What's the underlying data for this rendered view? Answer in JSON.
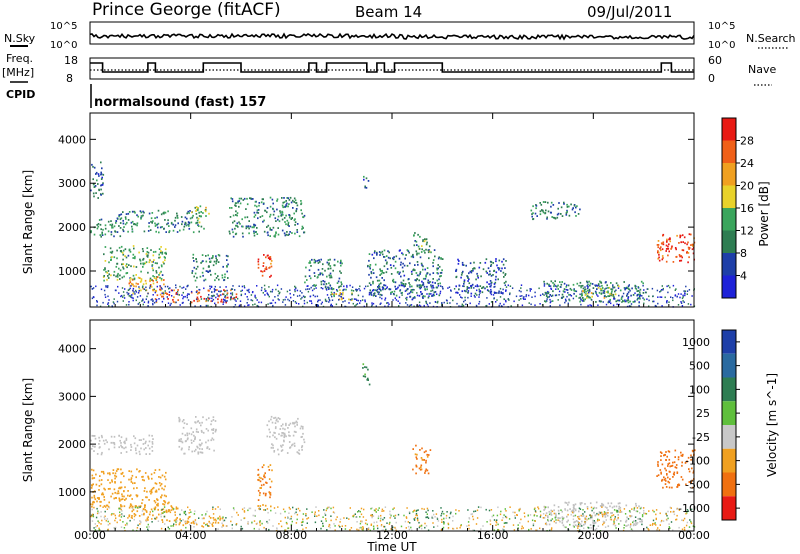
{
  "header": {
    "site": "Prince George (fitACF)",
    "beam": "Beam 14",
    "date": "09/Jul/2011"
  },
  "noise_panel": {
    "left_label": "N.Sky",
    "left_ticks": [
      "10^5",
      "10^0"
    ],
    "right_ticks": [
      "10^5",
      "10^0"
    ],
    "right_label": "N.Search"
  },
  "freq_panel": {
    "left_label_1": "Freq.",
    "left_label_2": "[MHz]",
    "left_ticks": [
      "18",
      "8"
    ],
    "right_ticks": [
      "60",
      "0"
    ],
    "right_label": "Nave"
  },
  "cpid_panel": {
    "label": "CPID",
    "mode": "normalsound (fast) 157"
  },
  "colors": {
    "power_scale": [
      "#1e22d8",
      "#1e3fa8",
      "#2e7d52",
      "#3aa55c",
      "#e8d22a",
      "#f0a020",
      "#f06018",
      "#e81a14"
    ],
    "velocity_scale": [
      "#1e3fa8",
      "#2a6aa0",
      "#2e7d52",
      "#5fbf3c",
      "#c8c8c8",
      "#f0a020",
      "#f07010",
      "#e81a14"
    ],
    "ground_scatter": "#c0c0c0"
  },
  "chart_data": [
    {
      "type": "heatmap",
      "panel": "power",
      "title": "",
      "xlabel": "Time UT",
      "ylabel": "Slant Range [km]",
      "xlim": [
        "00:00",
        "24:00"
      ],
      "ylim": [
        180,
        4600
      ],
      "x_ticks": [
        "00:00",
        "04:00",
        "08:00",
        "12:00",
        "16:00",
        "20:00",
        "00:00"
      ],
      "y_ticks": [
        "1000",
        "2000",
        "3000",
        "4000"
      ],
      "colorbar": {
        "label": "Power [dB]",
        "ticks": [
          "4",
          "8",
          "12",
          "16",
          "20",
          "24",
          "28"
        ],
        "range": [
          0,
          30
        ]
      },
      "echo_regions": [
        {
          "t0": 0.0,
          "t1": 0.5,
          "r0": 2600,
          "r1": 3500,
          "level": 8
        },
        {
          "t0": 0.0,
          "t1": 1.2,
          "r0": 1800,
          "r1": 2200,
          "level": 10
        },
        {
          "t0": 0.5,
          "t1": 3.0,
          "r0": 800,
          "r1": 1600,
          "level": 12
        },
        {
          "t0": 1.5,
          "t1": 3.0,
          "r0": 500,
          "r1": 900,
          "level": 20
        },
        {
          "t0": 2.5,
          "t1": 3.5,
          "r0": 300,
          "r1": 600,
          "level": 24
        },
        {
          "t0": 1.0,
          "t1": 4.5,
          "r0": 1900,
          "r1": 2400,
          "level": 10
        },
        {
          "t0": 4.0,
          "t1": 4.7,
          "r0": 2100,
          "r1": 2500,
          "level": 14
        },
        {
          "t0": 4.0,
          "t1": 5.8,
          "r0": 300,
          "r1": 600,
          "level": 26
        },
        {
          "t0": 4.0,
          "t1": 5.5,
          "r0": 800,
          "r1": 1400,
          "level": 10
        },
        {
          "t0": 5.5,
          "t1": 8.5,
          "r0": 1800,
          "r1": 2700,
          "level": 10
        },
        {
          "t0": 6.6,
          "t1": 7.2,
          "r0": 800,
          "r1": 1400,
          "level": 27
        },
        {
          "t0": 8.5,
          "t1": 10.0,
          "r0": 600,
          "r1": 1300,
          "level": 10
        },
        {
          "t0": 9.5,
          "t1": 10.5,
          "r0": 350,
          "r1": 600,
          "level": 16
        },
        {
          "t0": 10.8,
          "t1": 11.1,
          "r0": 2900,
          "r1": 3200,
          "level": 8
        },
        {
          "t0": 11.0,
          "t1": 14.0,
          "r0": 400,
          "r1": 1500,
          "level": 8
        },
        {
          "t0": 12.8,
          "t1": 13.5,
          "r0": 1400,
          "r1": 1900,
          "level": 12
        },
        {
          "t0": 14.5,
          "t1": 16.5,
          "r0": 500,
          "r1": 1300,
          "level": 6
        },
        {
          "t0": 17.5,
          "t1": 19.5,
          "r0": 2200,
          "r1": 2600,
          "level": 10
        },
        {
          "t0": 18.0,
          "t1": 22.0,
          "r0": 300,
          "r1": 800,
          "level": 10
        },
        {
          "t0": 19.5,
          "t1": 21.0,
          "r0": 400,
          "r1": 700,
          "level": 14
        },
        {
          "t0": 22.5,
          "t1": 24.0,
          "r0": 1200,
          "r1": 1900,
          "level": 26
        }
      ]
    },
    {
      "type": "heatmap",
      "panel": "velocity",
      "title": "",
      "xlabel": "Time UT",
      "ylabel": "Slant Range [km]",
      "xlim": [
        "00:00",
        "24:00"
      ],
      "ylim": [
        180,
        4600
      ],
      "x_ticks": [
        "00:00",
        "04:00",
        "08:00",
        "12:00",
        "16:00",
        "20:00",
        "00:00"
      ],
      "y_ticks": [
        "1000",
        "2000",
        "3000",
        "4000"
      ],
      "colorbar": {
        "label": "Velocity [m s^-1]",
        "ticks": [
          "1000",
          "500",
          "100",
          "25",
          "-25",
          "-100",
          "-500",
          "-1000"
        ],
        "range": [
          -1000,
          1000
        ]
      },
      "echo_regions": [
        {
          "t0": 0.0,
          "t1": 2.5,
          "r0": 1800,
          "r1": 2200,
          "v": -25,
          "ground": true
        },
        {
          "t0": 0.0,
          "t1": 3.0,
          "r0": 700,
          "r1": 1500,
          "v": -150
        },
        {
          "t0": 1.5,
          "t1": 3.5,
          "r0": 400,
          "r1": 800,
          "v": -200
        },
        {
          "t0": 3.5,
          "t1": 5.5,
          "r0": 300,
          "r1": 500,
          "v": -200
        },
        {
          "t0": 3.5,
          "t1": 5.0,
          "r0": 1800,
          "r1": 2600,
          "v": 0,
          "ground": true
        },
        {
          "t0": 6.6,
          "t1": 7.2,
          "r0": 700,
          "r1": 1600,
          "v": -300
        },
        {
          "t0": 7.0,
          "t1": 8.5,
          "r0": 1800,
          "r1": 2600,
          "v": 0,
          "ground": true
        },
        {
          "t0": 10.8,
          "t1": 11.1,
          "r0": 3200,
          "r1": 3700,
          "v": 100
        },
        {
          "t0": 12.8,
          "t1": 13.5,
          "r0": 1400,
          "r1": 2000,
          "v": -300
        },
        {
          "t0": 18.0,
          "t1": 22.0,
          "r0": 300,
          "r1": 800,
          "v": 0,
          "ground": true
        },
        {
          "t0": 22.5,
          "t1": 24.0,
          "r0": 1100,
          "r1": 1900,
          "v": -600
        }
      ]
    }
  ]
}
